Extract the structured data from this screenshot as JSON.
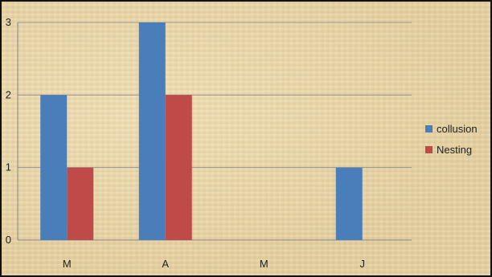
{
  "chart_data": {
    "type": "bar",
    "categories": [
      "M",
      "A",
      "M",
      "J"
    ],
    "series": [
      {
        "name": "collusion",
        "values": [
          2,
          3,
          0,
          1
        ],
        "color": "#4a7ebb"
      },
      {
        "name": "Nesting",
        "values": [
          1,
          2,
          0,
          0
        ],
        "color": "#be4b48"
      }
    ],
    "y_ticks": [
      "0",
      "1",
      "2",
      "3"
    ],
    "ylim": [
      0,
      3
    ],
    "grid": true,
    "legend_position": "right"
  }
}
